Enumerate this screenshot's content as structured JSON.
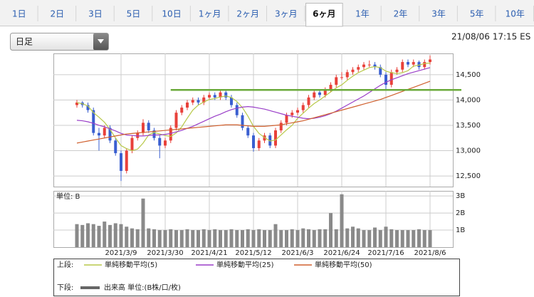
{
  "tabs": [
    {
      "label": "1日"
    },
    {
      "label": "2日"
    },
    {
      "label": "3日"
    },
    {
      "label": "5日"
    },
    {
      "label": "10日"
    },
    {
      "label": "1ヶ月"
    },
    {
      "label": "2ヶ月"
    },
    {
      "label": "3ヶ月"
    },
    {
      "label": "6ヶ月",
      "selected": true
    },
    {
      "label": "1年"
    },
    {
      "label": "2年"
    },
    {
      "label": "3年"
    },
    {
      "label": "5年"
    },
    {
      "label": "10年"
    }
  ],
  "dropdown": "日足",
  "timestamp": "21/08/06 17:15 ES",
  "chart_data": [
    {
      "type": "candlestick",
      "legend_label": "上段:",
      "up_color": "#e8413a",
      "down_color": "#3a5fd0",
      "ohlc": [
        [
          13900,
          14000,
          13850,
          13950
        ],
        [
          13950,
          13980,
          13850,
          13900
        ],
        [
          13900,
          13950,
          13750,
          13800
        ],
        [
          13800,
          13850,
          13300,
          13350
        ],
        [
          13350,
          13450,
          13000,
          13300
        ],
        [
          13300,
          13500,
          13250,
          13450
        ],
        [
          13450,
          13500,
          13150,
          13200
        ],
        [
          13200,
          13250,
          12900,
          12950
        ],
        [
          12950,
          13000,
          12400,
          12600
        ],
        [
          12600,
          13050,
          12550,
          13000
        ],
        [
          13000,
          13300,
          12950,
          13250
        ],
        [
          13250,
          13400,
          13200,
          13350
        ],
        [
          13350,
          13620,
          13300,
          13550
        ],
        [
          13550,
          13600,
          13350,
          13400
        ],
        [
          13400,
          13450,
          13200,
          13250
        ],
        [
          13250,
          13300,
          12850,
          13100
        ],
        [
          13100,
          13250,
          13050,
          13200
        ],
        [
          13200,
          13500,
          13150,
          13450
        ],
        [
          13450,
          13800,
          13400,
          13750
        ],
        [
          13750,
          13900,
          13700,
          13850
        ],
        [
          13850,
          14000,
          13800,
          13950
        ],
        [
          13950,
          14050,
          13900,
          14000
        ],
        [
          14000,
          14050,
          13900,
          13950
        ],
        [
          13950,
          14100,
          13900,
          14050
        ],
        [
          14050,
          14150,
          14000,
          14100
        ],
        [
          14100,
          14150,
          14000,
          14050
        ],
        [
          14050,
          14200,
          14000,
          14150
        ],
        [
          14150,
          14180,
          14000,
          14050
        ],
        [
          14050,
          14100,
          13850,
          13900
        ],
        [
          13900,
          13950,
          13650,
          13700
        ],
        [
          13700,
          13750,
          13400,
          13450
        ],
        [
          13450,
          13500,
          13250,
          13300
        ],
        [
          13300,
          13350,
          12980,
          13050
        ],
        [
          13050,
          13250,
          13000,
          13200
        ],
        [
          13200,
          13350,
          13150,
          13300
        ],
        [
          13300,
          13350,
          13050,
          13100
        ],
        [
          13100,
          13450,
          13050,
          13400
        ],
        [
          13400,
          13600,
          13350,
          13550
        ],
        [
          13550,
          13750,
          13500,
          13700
        ],
        [
          13700,
          13800,
          13650,
          13750
        ],
        [
          13750,
          13850,
          13700,
          13800
        ],
        [
          13800,
          13950,
          13750,
          13900
        ],
        [
          13900,
          14100,
          13850,
          14050
        ],
        [
          14050,
          14200,
          14000,
          14150
        ],
        [
          14150,
          14200,
          14050,
          14100
        ],
        [
          14100,
          14250,
          14050,
          14200
        ],
        [
          14200,
          14350,
          14150,
          14300
        ],
        [
          14300,
          14500,
          14250,
          14450
        ],
        [
          14450,
          14550,
          14400,
          14450
        ],
        [
          14450,
          14600,
          14400,
          14550
        ],
        [
          14550,
          14650,
          14500,
          14600
        ],
        [
          14600,
          14700,
          14550,
          14650
        ],
        [
          14650,
          14750,
          14600,
          14700
        ],
        [
          14700,
          14780,
          14650,
          14700
        ],
        [
          14700,
          14750,
          14600,
          14650
        ],
        [
          14650,
          14700,
          14450,
          14500
        ],
        [
          14500,
          14550,
          14200,
          14300
        ],
        [
          14300,
          14600,
          14250,
          14550
        ],
        [
          14550,
          14650,
          14500,
          14600
        ],
        [
          14600,
          14800,
          14550,
          14750
        ],
        [
          14750,
          14800,
          14650,
          14700
        ],
        [
          14700,
          14800,
          14650,
          14750
        ],
        [
          14750,
          14780,
          14600,
          14650
        ],
        [
          14650,
          14800,
          14600,
          14750
        ],
        [
          14750,
          14880,
          14700,
          14800
        ]
      ],
      "series": [
        {
          "name": "単純移動平均(5)",
          "color": "#b8c94a",
          "values": [
            13950,
            13925,
            13883,
            13750,
            13660,
            13560,
            13420,
            13250,
            13100,
            13040,
            13000,
            13030,
            13150,
            13310,
            13360,
            13330,
            13300,
            13280,
            13350,
            13470,
            13640,
            13800,
            13900,
            13960,
            14010,
            14030,
            14060,
            14080,
            14050,
            13970,
            13850,
            13680,
            13480,
            13340,
            13260,
            13190,
            13210,
            13310,
            13410,
            13500,
            13640,
            13740,
            13840,
            13930,
            14000,
            14080,
            14160,
            14240,
            14300,
            14390,
            14470,
            14540,
            14590,
            14640,
            14660,
            14640,
            14570,
            14540,
            14520,
            14540,
            14580,
            14670,
            14690,
            14720,
            14730
          ]
        },
        {
          "name": "単純移動平均(25)",
          "color": "#9a3fc8",
          "values": [
            13600,
            13590,
            13570,
            13540,
            13500,
            13470,
            13430,
            13390,
            13340,
            13310,
            13300,
            13290,
            13290,
            13300,
            13310,
            13310,
            13320,
            13340,
            13370,
            13400,
            13440,
            13480,
            13530,
            13580,
            13630,
            13680,
            13720,
            13770,
            13810,
            13840,
            13860,
            13870,
            13860,
            13840,
            13820,
            13790,
            13760,
            13730,
            13700,
            13680,
            13660,
            13640,
            13630,
            13640,
            13660,
            13690,
            13730,
            13780,
            13840,
            13900,
            13960,
            14020,
            14080,
            14150,
            14220,
            14290,
            14350,
            14400,
            14440,
            14480,
            14520,
            14550,
            14580,
            14610,
            14640
          ]
        },
        {
          "name": "単純移動平均(50)",
          "color": "#d0602e",
          "values": [
            13150,
            13170,
            13190,
            13210,
            13230,
            13250,
            13270,
            13290,
            13310,
            13330,
            13340,
            13350,
            13360,
            13370,
            13380,
            13390,
            13400,
            13410,
            13420,
            13430,
            13440,
            13450,
            13460,
            13470,
            13480,
            13490,
            13500,
            13510,
            13510,
            13510,
            13500,
            13490,
            13480,
            13480,
            13480,
            13490,
            13500,
            13510,
            13530,
            13550,
            13570,
            13590,
            13620,
            13650,
            13680,
            13710,
            13740,
            13770,
            13800,
            13830,
            13860,
            13890,
            13920,
            13950,
            13980,
            14010,
            14050,
            14090,
            14130,
            14170,
            14210,
            14250,
            14290,
            14330,
            14370
          ]
        }
      ],
      "hline": {
        "value": 14200,
        "from": 17,
        "color": "#6aaa3a"
      },
      "ylim": [
        12290,
        14920
      ],
      "yticks": [
        {
          "value": 12500,
          "label": "12,500"
        },
        {
          "value": 13000,
          "label": "13,000"
        },
        {
          "value": 13500,
          "label": "13,500"
        },
        {
          "value": 14000,
          "label": "14,000"
        },
        {
          "value": 14500,
          "label": "14,500"
        }
      ],
      "grid": true
    },
    {
      "type": "bar",
      "legend_label": "下段:",
      "unit_label": "単位: B",
      "categories": [
        null,
        null,
        null,
        null,
        null,
        null,
        null,
        null,
        "2021/3/9",
        null,
        null,
        null,
        null,
        null,
        null,
        null,
        "2021/3/30",
        null,
        null,
        null,
        null,
        null,
        null,
        null,
        "2021/4/21",
        null,
        null,
        null,
        null,
        null,
        null,
        null,
        "2021/5/12",
        null,
        null,
        null,
        null,
        null,
        null,
        null,
        "2021/6/3",
        null,
        null,
        null,
        null,
        null,
        null,
        null,
        "2021/6/24",
        null,
        null,
        null,
        null,
        null,
        null,
        null,
        "2021/7/16",
        null,
        null,
        null,
        null,
        null,
        null,
        null,
        "2021/8/6"
      ],
      "series": [
        {
          "name": "出来高 単位:(B株/口/枚)",
          "color": "#8a8a8a",
          "values": [
            1.35,
            1.3,
            1.4,
            1.35,
            1.25,
            1.5,
            1.3,
            1.4,
            1.35,
            1.2,
            1.1,
            1.05,
            2.85,
            1.1,
            1.05,
            1.0,
            1.0,
            1.05,
            1.0,
            1.0,
            1.05,
            1.0,
            1.0,
            1.05,
            1.0,
            1.05,
            1.0,
            1.0,
            1.05,
            1.0,
            1.0,
            1.05,
            1.0,
            1.05,
            1.0,
            1.0,
            1.35,
            1.0,
            1.0,
            1.05,
            1.0,
            1.1,
            1.05,
            1.0,
            1.05,
            1.05,
            2.0,
            1.05,
            3.1,
            1.1,
            1.2,
            1.1,
            1.0,
            1.0,
            1.15,
            1.0,
            1.2,
            1.05,
            1.0,
            1.0,
            1.0,
            1.0,
            1.05,
            1.0,
            1.0
          ]
        }
      ],
      "ylim": [
        0,
        3.3
      ],
      "yticks": [
        {
          "value": 1,
          "label": "1B"
        },
        {
          "value": 2,
          "label": "2B"
        },
        {
          "value": 3,
          "label": "3B"
        }
      ],
      "grid": true
    }
  ]
}
